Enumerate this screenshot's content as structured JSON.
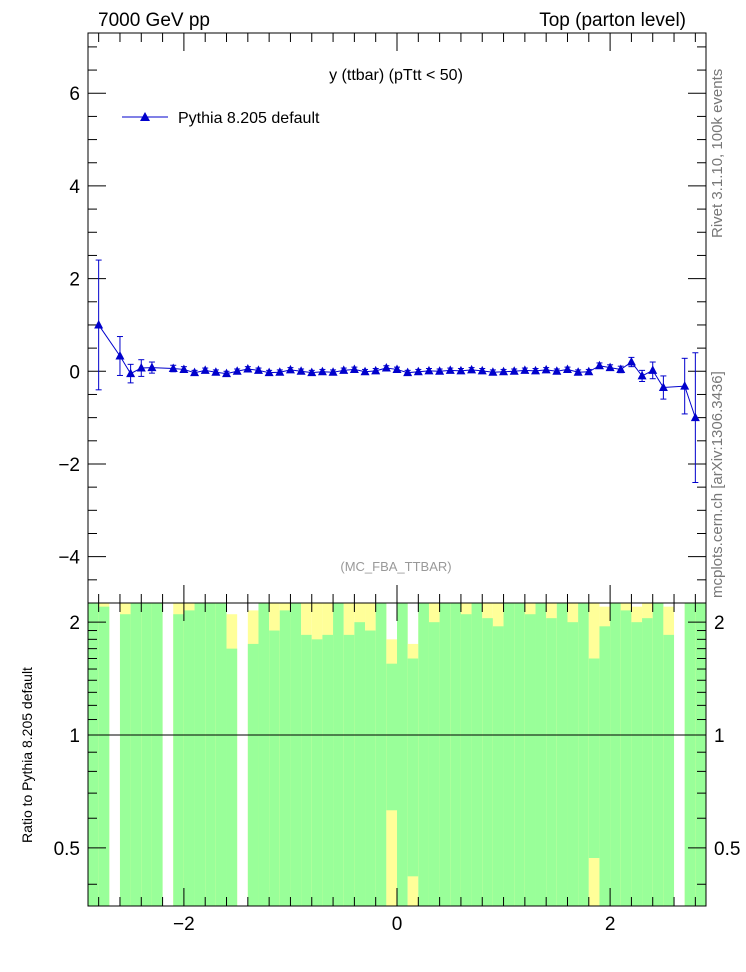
{
  "header": {
    "left": "7000 GeV pp",
    "right": "Top (parton level)"
  },
  "side_labels": {
    "rivet": "Rivet 3.1.10,  100k events",
    "mcplots": "mcplots.cern.ch [arXiv:1306.3436]"
  },
  "colors": {
    "series": "#0000cc",
    "band_inner": "#99ff99",
    "band_outer": "#ffff99",
    "analysis_label": "#999999"
  },
  "chart_data": [
    {
      "type": "line",
      "title": "y (ttbar) (pTtt < 50)",
      "analysis_label": "(MC_FBA_TTBAR)",
      "xlabel": "",
      "ylabel": "",
      "xlim": [
        -2.9,
        2.9
      ],
      "ylim": [
        -5,
        7.3
      ],
      "legend_position": "top-left",
      "x_ticks": [
        -2,
        0,
        2
      ],
      "y_ticks": [
        -4,
        -2,
        0,
        2,
        4,
        6
      ],
      "y_tick_labels": [
        "−4",
        "−2",
        "0",
        "2",
        "4",
        "6"
      ],
      "series": [
        {
          "name": "Pythia 8.205 default",
          "marker": "triangle",
          "points": [
            {
              "x": -2.8,
              "y": 1.0,
              "err": 1.4
            },
            {
              "x": -2.6,
              "y": 0.33,
              "err": 0.42
            },
            {
              "x": -2.5,
              "y": -0.05,
              "err": 0.2
            },
            {
              "x": -2.4,
              "y": 0.07,
              "err": 0.18
            },
            {
              "x": -2.3,
              "y": 0.08,
              "err": 0.12
            },
            {
              "x": -2.1,
              "y": 0.06,
              "err": 0.07
            },
            {
              "x": -2.0,
              "y": 0.04,
              "err": 0.06
            },
            {
              "x": -1.9,
              "y": -0.03,
              "err": 0.05
            },
            {
              "x": -1.8,
              "y": 0.02,
              "err": 0.05
            },
            {
              "x": -1.7,
              "y": -0.02,
              "err": 0.05
            },
            {
              "x": -1.6,
              "y": -0.05,
              "err": 0.05
            },
            {
              "x": -1.5,
              "y": 0.0,
              "err": 0.05
            },
            {
              "x": -1.4,
              "y": 0.05,
              "err": 0.05
            },
            {
              "x": -1.3,
              "y": 0.02,
              "err": 0.05
            },
            {
              "x": -1.2,
              "y": -0.03,
              "err": 0.05
            },
            {
              "x": -1.1,
              "y": -0.02,
              "err": 0.05
            },
            {
              "x": -1.0,
              "y": 0.03,
              "err": 0.05
            },
            {
              "x": -0.9,
              "y": 0.0,
              "err": 0.05
            },
            {
              "x": -0.8,
              "y": -0.03,
              "err": 0.05
            },
            {
              "x": -0.7,
              "y": -0.01,
              "err": 0.05
            },
            {
              "x": -0.6,
              "y": -0.02,
              "err": 0.05
            },
            {
              "x": -0.5,
              "y": 0.02,
              "err": 0.05
            },
            {
              "x": -0.4,
              "y": 0.04,
              "err": 0.05
            },
            {
              "x": -0.3,
              "y": -0.01,
              "err": 0.05
            },
            {
              "x": -0.2,
              "y": 0.01,
              "err": 0.05
            },
            {
              "x": -0.1,
              "y": 0.07,
              "err": 0.05
            },
            {
              "x": 0.0,
              "y": 0.04,
              "err": 0.05
            },
            {
              "x": 0.1,
              "y": -0.03,
              "err": 0.05
            },
            {
              "x": 0.2,
              "y": -0.01,
              "err": 0.05
            },
            {
              "x": 0.3,
              "y": 0.01,
              "err": 0.05
            },
            {
              "x": 0.4,
              "y": 0.0,
              "err": 0.05
            },
            {
              "x": 0.5,
              "y": 0.02,
              "err": 0.05
            },
            {
              "x": 0.6,
              "y": 0.01,
              "err": 0.05
            },
            {
              "x": 0.7,
              "y": 0.03,
              "err": 0.05
            },
            {
              "x": 0.8,
              "y": 0.01,
              "err": 0.05
            },
            {
              "x": 0.9,
              "y": -0.02,
              "err": 0.05
            },
            {
              "x": 1.0,
              "y": -0.01,
              "err": 0.05
            },
            {
              "x": 1.1,
              "y": 0.0,
              "err": 0.05
            },
            {
              "x": 1.2,
              "y": 0.02,
              "err": 0.05
            },
            {
              "x": 1.3,
              "y": 0.01,
              "err": 0.05
            },
            {
              "x": 1.4,
              "y": 0.03,
              "err": 0.05
            },
            {
              "x": 1.5,
              "y": 0.0,
              "err": 0.05
            },
            {
              "x": 1.6,
              "y": 0.04,
              "err": 0.05
            },
            {
              "x": 1.7,
              "y": -0.02,
              "err": 0.05
            },
            {
              "x": 1.8,
              "y": -0.01,
              "err": 0.05
            },
            {
              "x": 1.9,
              "y": 0.12,
              "err": 0.06
            },
            {
              "x": 2.0,
              "y": 0.08,
              "err": 0.06
            },
            {
              "x": 2.1,
              "y": 0.04,
              "err": 0.07
            },
            {
              "x": 2.2,
              "y": 0.2,
              "err": 0.1
            },
            {
              "x": 2.3,
              "y": -0.1,
              "err": 0.12
            },
            {
              "x": 2.4,
              "y": 0.02,
              "err": 0.18
            },
            {
              "x": 2.5,
              "y": -0.35,
              "err": 0.25
            },
            {
              "x": 2.7,
              "y": -0.32,
              "err": 0.6
            },
            {
              "x": 2.8,
              "y": -1.0,
              "err": 1.4
            }
          ]
        }
      ]
    },
    {
      "type": "bar",
      "title": "",
      "xlabel": "",
      "ylabel": "Ratio to Pythia 8.205 default",
      "xlim": [
        -2.9,
        2.9
      ],
      "ylim": [
        0.35,
        2.25
      ],
      "y_scale": "log",
      "reference_line": 1,
      "x_ticks": [
        -2,
        0,
        2
      ],
      "x_tick_labels": [
        "−2",
        "0",
        "2"
      ],
      "y_ticks": [
        0.5,
        1,
        2
      ],
      "y_tick_labels": [
        "0.5",
        "1",
        "2"
      ],
      "bands": [
        {
          "x0": -2.9,
          "x1": -2.8,
          "green": [
            0.35,
            2.25
          ],
          "yellow": [
            0.35,
            2.25
          ]
        },
        {
          "x0": -2.8,
          "x1": -2.7,
          "green": [
            0.35,
            2.2
          ],
          "yellow": [
            0.35,
            2.25
          ]
        },
        {
          "x0": -2.6,
          "x1": -2.5,
          "green": [
            0.35,
            2.1
          ],
          "yellow": [
            0.35,
            2.25
          ]
        },
        {
          "x0": -2.5,
          "x1": -2.4,
          "green": [
            0.35,
            2.25
          ],
          "yellow": [
            0.35,
            2.25
          ]
        },
        {
          "x0": -2.4,
          "x1": -2.3,
          "green": [
            0.35,
            2.25
          ],
          "yellow": [
            0.35,
            2.25
          ]
        },
        {
          "x0": -2.3,
          "x1": -2.2,
          "green": [
            0.35,
            2.25
          ],
          "yellow": [
            0.35,
            2.25
          ]
        },
        {
          "x0": -2.1,
          "x1": -2.0,
          "green": [
            0.35,
            2.1
          ],
          "yellow": [
            0.35,
            2.25
          ]
        },
        {
          "x0": -2.0,
          "x1": -1.9,
          "green": [
            0.35,
            2.15
          ],
          "yellow": [
            0.35,
            2.25
          ]
        },
        {
          "x0": -1.9,
          "x1": -1.8,
          "green": [
            0.35,
            2.25
          ],
          "yellow": [
            0.35,
            2.25
          ]
        },
        {
          "x0": -1.8,
          "x1": -1.7,
          "green": [
            0.35,
            2.25
          ],
          "yellow": [
            0.35,
            2.25
          ]
        },
        {
          "x0": -1.7,
          "x1": -1.6,
          "green": [
            0.35,
            2.25
          ],
          "yellow": [
            0.35,
            2.25
          ]
        },
        {
          "x0": -1.6,
          "x1": -1.5,
          "green": [
            0.35,
            1.7
          ],
          "yellow": [
            0.35,
            2.1
          ]
        },
        {
          "x0": -1.4,
          "x1": -1.3,
          "green": [
            0.35,
            1.75
          ],
          "yellow": [
            0.35,
            2.15
          ]
        },
        {
          "x0": -1.3,
          "x1": -1.2,
          "green": [
            0.35,
            2.25
          ],
          "yellow": [
            0.35,
            2.25
          ]
        },
        {
          "x0": -1.2,
          "x1": -1.1,
          "green": [
            0.35,
            1.9
          ],
          "yellow": [
            0.35,
            2.25
          ]
        },
        {
          "x0": -1.1,
          "x1": -1.0,
          "green": [
            0.35,
            2.15
          ],
          "yellow": [
            0.35,
            2.25
          ]
        },
        {
          "x0": -1.0,
          "x1": -0.9,
          "green": [
            0.35,
            2.25
          ],
          "yellow": [
            0.35,
            2.25
          ]
        },
        {
          "x0": -0.9,
          "x1": -0.8,
          "green": [
            0.35,
            1.85
          ],
          "yellow": [
            0.35,
            2.25
          ]
        },
        {
          "x0": -0.8,
          "x1": -0.7,
          "green": [
            0.35,
            1.8
          ],
          "yellow": [
            0.35,
            2.25
          ]
        },
        {
          "x0": -0.7,
          "x1": -0.6,
          "green": [
            0.35,
            1.85
          ],
          "yellow": [
            0.35,
            2.25
          ]
        },
        {
          "x0": -0.6,
          "x1": -0.5,
          "green": [
            0.35,
            2.25
          ],
          "yellow": [
            0.35,
            2.25
          ]
        },
        {
          "x0": -0.5,
          "x1": -0.4,
          "green": [
            0.35,
            1.85
          ],
          "yellow": [
            0.35,
            2.25
          ]
        },
        {
          "x0": -0.4,
          "x1": -0.3,
          "green": [
            0.35,
            2.0
          ],
          "yellow": [
            0.35,
            2.25
          ]
        },
        {
          "x0": -0.3,
          "x1": -0.2,
          "green": [
            0.35,
            1.9
          ],
          "yellow": [
            0.35,
            2.25
          ]
        },
        {
          "x0": -0.2,
          "x1": -0.1,
          "green": [
            0.35,
            2.25
          ],
          "yellow": [
            0.35,
            2.25
          ]
        },
        {
          "x0": -0.1,
          "x1": 0.0,
          "green": [
            0.63,
            1.55
          ],
          "yellow": [
            0.35,
            1.8
          ]
        },
        {
          "x0": 0.0,
          "x1": 0.1,
          "green": [
            0.35,
            2.25
          ],
          "yellow": [
            0.35,
            2.25
          ]
        },
        {
          "x0": 0.1,
          "x1": 0.2,
          "green": [
            0.42,
            1.6
          ],
          "yellow": [
            0.35,
            1.75
          ]
        },
        {
          "x0": 0.2,
          "x1": 0.3,
          "green": [
            0.35,
            2.25
          ],
          "yellow": [
            0.35,
            2.25
          ]
        },
        {
          "x0": 0.3,
          "x1": 0.4,
          "green": [
            0.35,
            2.0
          ],
          "yellow": [
            0.35,
            2.25
          ]
        },
        {
          "x0": 0.4,
          "x1": 0.5,
          "green": [
            0.35,
            2.25
          ],
          "yellow": [
            0.35,
            2.25
          ]
        },
        {
          "x0": 0.5,
          "x1": 0.6,
          "green": [
            0.35,
            2.25
          ],
          "yellow": [
            0.35,
            2.25
          ]
        },
        {
          "x0": 0.6,
          "x1": 0.7,
          "green": [
            0.35,
            2.1
          ],
          "yellow": [
            0.35,
            2.25
          ]
        },
        {
          "x0": 0.7,
          "x1": 0.8,
          "green": [
            0.35,
            2.25
          ],
          "yellow": [
            0.35,
            2.25
          ]
        },
        {
          "x0": 0.8,
          "x1": 0.9,
          "green": [
            0.35,
            2.05
          ],
          "yellow": [
            0.35,
            2.25
          ]
        },
        {
          "x0": 0.9,
          "x1": 1.0,
          "green": [
            0.35,
            1.95
          ],
          "yellow": [
            0.35,
            2.25
          ]
        },
        {
          "x0": 1.0,
          "x1": 1.1,
          "green": [
            0.35,
            2.25
          ],
          "yellow": [
            0.35,
            2.25
          ]
        },
        {
          "x0": 1.1,
          "x1": 1.2,
          "green": [
            0.35,
            2.25
          ],
          "yellow": [
            0.35,
            2.25
          ]
        },
        {
          "x0": 1.2,
          "x1": 1.3,
          "green": [
            0.35,
            2.1
          ],
          "yellow": [
            0.35,
            2.25
          ]
        },
        {
          "x0": 1.3,
          "x1": 1.4,
          "green": [
            0.35,
            2.25
          ],
          "yellow": [
            0.35,
            2.25
          ]
        },
        {
          "x0": 1.4,
          "x1": 1.5,
          "green": [
            0.35,
            2.05
          ],
          "yellow": [
            0.35,
            2.25
          ]
        },
        {
          "x0": 1.5,
          "x1": 1.6,
          "green": [
            0.35,
            2.25
          ],
          "yellow": [
            0.35,
            2.25
          ]
        },
        {
          "x0": 1.6,
          "x1": 1.7,
          "green": [
            0.35,
            2.0
          ],
          "yellow": [
            0.35,
            2.25
          ]
        },
        {
          "x0": 1.7,
          "x1": 1.8,
          "green": [
            0.35,
            2.25
          ],
          "yellow": [
            0.35,
            2.25
          ]
        },
        {
          "x0": 1.8,
          "x1": 1.9,
          "green": [
            0.47,
            1.6
          ],
          "yellow": [
            0.35,
            2.25
          ]
        },
        {
          "x0": 1.9,
          "x1": 2.0,
          "green": [
            0.35,
            1.95
          ],
          "yellow": [
            0.35,
            2.2
          ]
        },
        {
          "x0": 2.0,
          "x1": 2.1,
          "green": [
            0.35,
            2.25
          ],
          "yellow": [
            0.35,
            2.25
          ]
        },
        {
          "x0": 2.1,
          "x1": 2.2,
          "green": [
            0.35,
            2.15
          ],
          "yellow": [
            0.35,
            2.25
          ]
        },
        {
          "x0": 2.2,
          "x1": 2.3,
          "green": [
            0.35,
            2.0
          ],
          "yellow": [
            0.35,
            2.2
          ]
        },
        {
          "x0": 2.3,
          "x1": 2.4,
          "green": [
            0.35,
            2.05
          ],
          "yellow": [
            0.35,
            2.25
          ]
        },
        {
          "x0": 2.4,
          "x1": 2.5,
          "green": [
            0.35,
            2.25
          ],
          "yellow": [
            0.35,
            2.25
          ]
        },
        {
          "x0": 2.5,
          "x1": 2.6,
          "green": [
            0.35,
            1.85
          ],
          "yellow": [
            0.35,
            2.2
          ]
        },
        {
          "x0": 2.7,
          "x1": 2.8,
          "green": [
            0.35,
            2.25
          ],
          "yellow": [
            0.35,
            2.25
          ]
        },
        {
          "x0": 2.8,
          "x1": 2.9,
          "green": [
            0.35,
            2.25
          ],
          "yellow": [
            0.35,
            2.25
          ]
        }
      ]
    }
  ]
}
